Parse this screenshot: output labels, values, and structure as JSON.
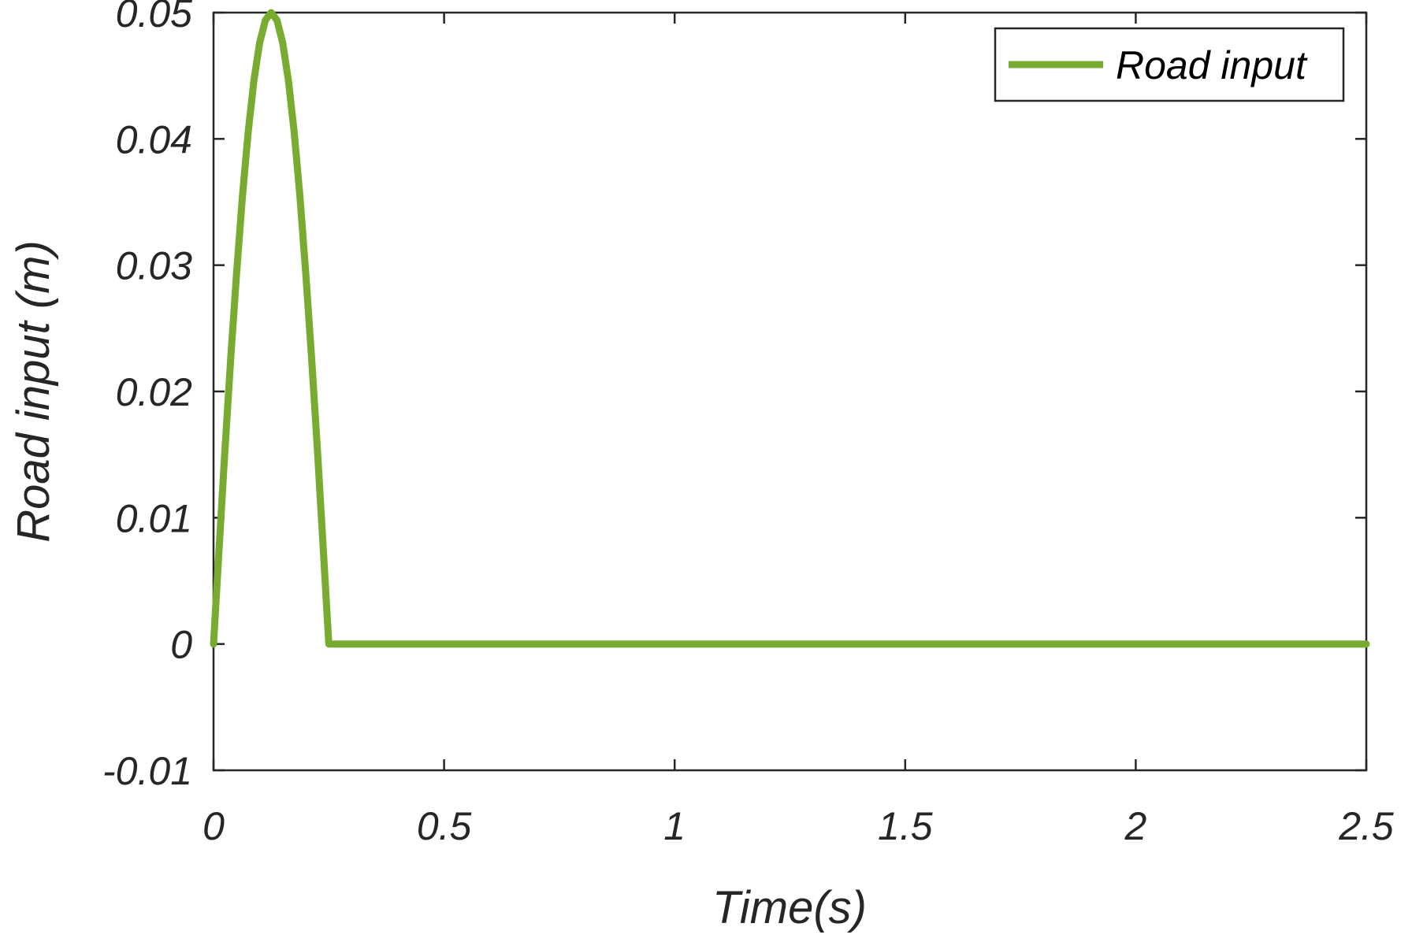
{
  "chart_data": {
    "type": "line",
    "title": "",
    "xlabel": "Time(s)",
    "ylabel": "Road input (m)",
    "xlim": [
      0,
      2.5
    ],
    "ylim": [
      -0.01,
      0.05
    ],
    "xticks": [
      0,
      0.5,
      1,
      1.5,
      2,
      2.5
    ],
    "xtick_labels": [
      "0",
      "0.5",
      "1",
      "1.5",
      "2",
      "2.5"
    ],
    "yticks": [
      -0.01,
      0,
      0.01,
      0.02,
      0.03,
      0.04,
      0.05
    ],
    "ytick_labels": [
      "-0.01",
      "0",
      "0.01",
      "0.02",
      "0.03",
      "0.04",
      "0.05"
    ],
    "grid": false,
    "legend_position": "top-right",
    "series": [
      {
        "name": "Road input",
        "color": "#77ac30",
        "x": [
          0,
          0.0125,
          0.025,
          0.0375,
          0.05,
          0.0625,
          0.075,
          0.0875,
          0.1,
          0.1125,
          0.125,
          0.1375,
          0.15,
          0.1625,
          0.175,
          0.1875,
          0.2,
          0.2125,
          0.225,
          0.2375,
          0.25,
          0.5,
          1,
          1.5,
          2,
          2.5
        ],
        "y": [
          0,
          0.0078,
          0.0155,
          0.0227,
          0.0294,
          0.0354,
          0.0405,
          0.0446,
          0.0476,
          0.0494,
          0.05,
          0.0494,
          0.0476,
          0.0446,
          0.0405,
          0.0354,
          0.0294,
          0.0227,
          0.0155,
          0.0078,
          0,
          0,
          0,
          0,
          0,
          0
        ]
      }
    ]
  }
}
